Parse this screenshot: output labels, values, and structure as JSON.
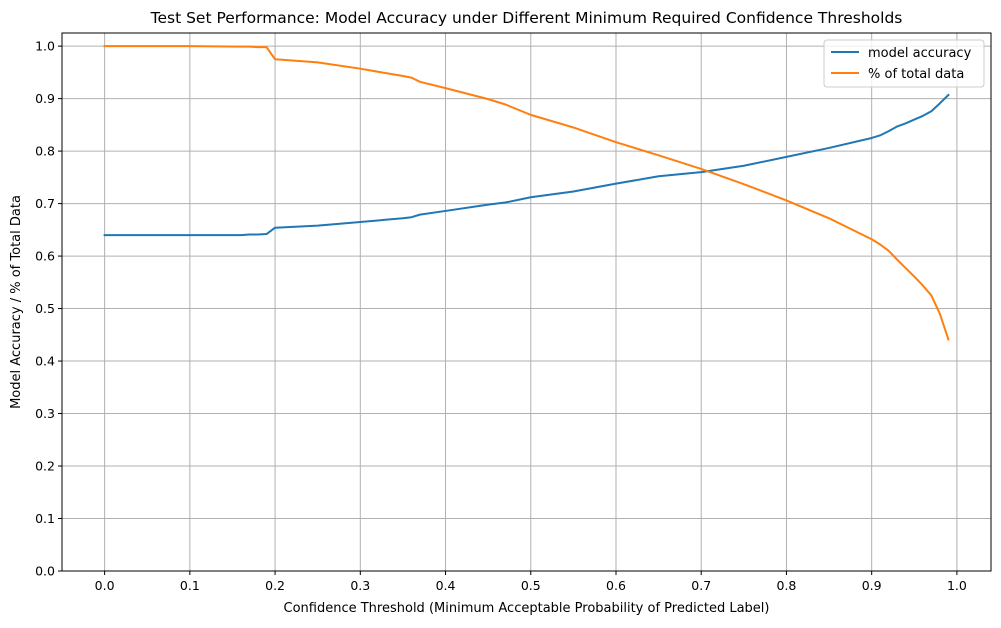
{
  "chart_data": {
    "type": "line",
    "title": "Test Set Performance: Model Accuracy under Different Minimum Required Confidence Thresholds",
    "xlabel": "Confidence Threshold (Minimum Acceptable Probability of Predicted Label)",
    "ylabel": "Model Accuracy / % of Total Data",
    "xlim": [
      -0.05,
      1.04
    ],
    "ylim": [
      0.0,
      1.025
    ],
    "xticks": [
      0.0,
      0.1,
      0.2,
      0.3,
      0.4,
      0.5,
      0.6,
      0.7,
      0.8,
      0.9,
      1.0
    ],
    "xtick_labels": [
      "0.0",
      "0.1",
      "0.2",
      "0.3",
      "0.4",
      "0.5",
      "0.6",
      "0.7",
      "0.8",
      "0.9",
      "1.0"
    ],
    "yticks": [
      0.0,
      0.1,
      0.2,
      0.3,
      0.4,
      0.5,
      0.6,
      0.7,
      0.8,
      0.9,
      1.0
    ],
    "ytick_labels": [
      "0.0",
      "0.1",
      "0.2",
      "0.3",
      "0.4",
      "0.5",
      "0.6",
      "0.7",
      "0.8",
      "0.9",
      "1.0"
    ],
    "grid": true,
    "legend_position": "top-right",
    "x": [
      0.0,
      0.1,
      0.16,
      0.17,
      0.18,
      0.19,
      0.2,
      0.25,
      0.3,
      0.35,
      0.36,
      0.37,
      0.4,
      0.45,
      0.47,
      0.5,
      0.55,
      0.6,
      0.65,
      0.7,
      0.75,
      0.8,
      0.85,
      0.9,
      0.91,
      0.92,
      0.93,
      0.94,
      0.95,
      0.96,
      0.97,
      0.98,
      0.99
    ],
    "series": [
      {
        "name": "model accuracy",
        "color": "#1f77b4",
        "values": [
          0.64,
          0.64,
          0.64,
          0.641,
          0.641,
          0.642,
          0.654,
          0.658,
          0.665,
          0.672,
          0.674,
          0.679,
          0.686,
          0.698,
          0.702,
          0.712,
          0.723,
          0.738,
          0.752,
          0.76,
          0.772,
          0.789,
          0.806,
          0.825,
          0.83,
          0.838,
          0.847,
          0.853,
          0.86,
          0.867,
          0.876,
          0.891,
          0.907
        ]
      },
      {
        "name": "% of total data",
        "color": "#ff7f0e",
        "values": [
          1.0,
          1.0,
          0.999,
          0.999,
          0.998,
          0.998,
          0.975,
          0.969,
          0.957,
          0.943,
          0.94,
          0.932,
          0.92,
          0.899,
          0.889,
          0.869,
          0.845,
          0.817,
          0.792,
          0.766,
          0.737,
          0.706,
          0.672,
          0.632,
          0.622,
          0.61,
          0.593,
          0.577,
          0.561,
          0.544,
          0.525,
          0.49,
          0.441
        ]
      }
    ]
  }
}
